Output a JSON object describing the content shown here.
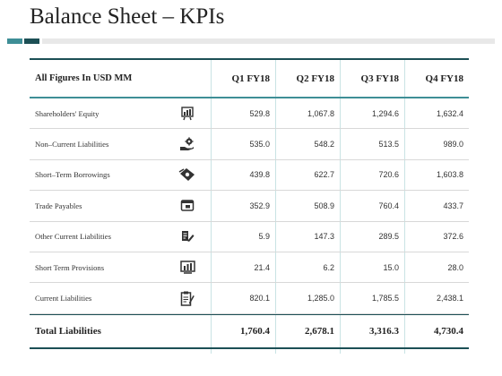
{
  "title": "Balance Sheet – KPIs",
  "colors": {
    "accent": "#3e8e96",
    "dark_accent": "#1c4f55",
    "divider": "#e8e8e8"
  },
  "table": {
    "header": {
      "label": "All Figures In USD MM",
      "q1": "Q1 FY18",
      "q2": "Q2 FY18",
      "q3": "Q3 FY18",
      "q4": "Q4 FY18"
    },
    "rows": [
      {
        "label": "Shareholders' Equity",
        "icon": "chart-board-icon",
        "q1": "529.8",
        "q2": "1,067.8",
        "q3": "1,294.6",
        "q4": "1,632.4"
      },
      {
        "label": "Non–Current Liabilities",
        "icon": "hand-gear-icon",
        "q1": "535.0",
        "q2": "548.2",
        "q3": "513.5",
        "q4": "989.0"
      },
      {
        "label": "Short–Term Borrowings",
        "icon": "money-tag-icon",
        "q1": "439.8",
        "q2": "622.7",
        "q3": "720.6",
        "q4": "1,603.8"
      },
      {
        "label": "Trade Payables",
        "icon": "wallet-icon",
        "q1": "352.9",
        "q2": "508.9",
        "q3": "760.4",
        "q4": "433.7"
      },
      {
        "label": "Other Current Liabilities",
        "icon": "document-pen-icon",
        "q1": "5.9",
        "q2": "147.3",
        "q3": "289.5",
        "q4": "372.6"
      },
      {
        "label": "Short Term Provisions",
        "icon": "bar-chart-screen-icon",
        "q1": "21.4",
        "q2": "6.2",
        "q3": "15.0",
        "q4": "28.0"
      },
      {
        "label": "Current Liabilities",
        "icon": "clipboard-pen-icon",
        "q1": "820.1",
        "q2": "1,285.0",
        "q3": "1,785.5",
        "q4": "2,438.1"
      }
    ],
    "total": {
      "label": "Total Liabilities",
      "q1": "1,760.4",
      "q2": "2,678.1",
      "q3": "3,316.3",
      "q4": "4,730.4"
    }
  }
}
